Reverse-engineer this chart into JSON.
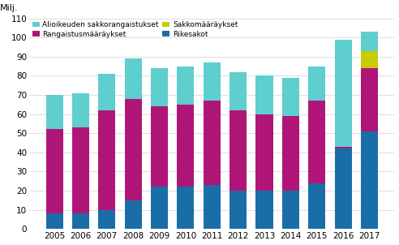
{
  "years": [
    2005,
    2006,
    2007,
    2008,
    2009,
    2010,
    2011,
    2012,
    2013,
    2014,
    2015,
    2016,
    2017
  ],
  "rikesakot": [
    8,
    8,
    10,
    15,
    22,
    22,
    23,
    20,
    20,
    20,
    24,
    42,
    51
  ],
  "rangaistusmaaraykset": [
    44,
    45,
    52,
    53,
    42,
    43,
    44,
    42,
    40,
    39,
    43,
    1,
    33
  ],
  "sakkomaaraykset": [
    0,
    0,
    0,
    0,
    0,
    0,
    0,
    0,
    0,
    0,
    0,
    0,
    9
  ],
  "alioikeuden_sakkorangaistukset": [
    18,
    18,
    19,
    21,
    20,
    20,
    20,
    20,
    20,
    20,
    18,
    56,
    10
  ],
  "colors": {
    "rikesakot": "#1a6ea8",
    "rangaistusmaaraykset": "#b01578",
    "sakkomaaraykset": "#c8cc00",
    "alioikeuden_sakkorangaistukset": "#5ecece"
  },
  "ylabel": "Milj.",
  "ylim": [
    0,
    110
  ],
  "yticks": [
    0,
    10,
    20,
    30,
    40,
    50,
    60,
    70,
    80,
    90,
    100,
    110
  ],
  "legend_labels": {
    "alioikeuden_sakkorangaistukset": "Alioikeuden sakkorangaistukset",
    "rangaistusmaaraykset": "Rangaistusmääräykset",
    "sakkomaaraykset": "Sakkomääräykset",
    "rikesakot": "Rikesakot"
  },
  "background_color": "#ffffff",
  "grid_color": "#d0d0d0"
}
